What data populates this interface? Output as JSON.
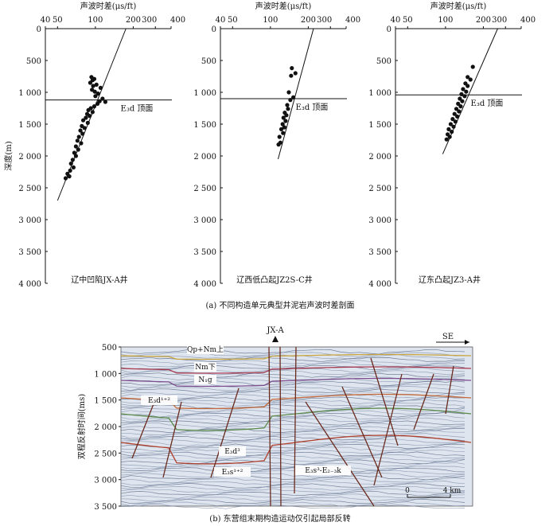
{
  "figure": {
    "caption_a": "(a) 不同构造单元典型井泥岩声波时差剖面",
    "caption_b": "(b) 东营组末期构造运动仅引起局部反转"
  },
  "chart_data": [
    {
      "type": "scatter",
      "title": "辽中凹陷JX-A井",
      "xlabel": "声波时差(μs/ft)",
      "ylabel": "深度(m)",
      "x_scale": "log",
      "xlim": [
        40,
        400
      ],
      "ylim": [
        0,
        4000
      ],
      "x_ticks": [
        "40",
        "50",
        "100",
        "200",
        "300",
        "400"
      ],
      "y_ticks": [
        "0",
        "500",
        "1 000",
        "1 500",
        "2 000",
        "2 500",
        "3 000",
        "3 500",
        "4 000"
      ],
      "boundary": {
        "label": "E₃d 顶面",
        "depth": 1120
      },
      "trend_line": [
        [
          175,
          0
        ],
        [
          50,
          2700
        ]
      ],
      "points": [
        [
          93,
          760
        ],
        [
          98,
          790
        ],
        [
          95,
          810
        ],
        [
          91,
          850
        ],
        [
          102,
          880
        ],
        [
          96,
          900
        ],
        [
          110,
          930
        ],
        [
          94,
          960
        ],
        [
          99,
          990
        ],
        [
          105,
          1020
        ],
        [
          100,
          1060
        ],
        [
          114,
          1100
        ],
        [
          108,
          1140
        ],
        [
          120,
          1150
        ],
        [
          104,
          1180
        ],
        [
          98,
          1220
        ],
        [
          92,
          1250
        ],
        [
          88,
          1280
        ],
        [
          95,
          1310
        ],
        [
          86,
          1340
        ],
        [
          90,
          1370
        ],
        [
          84,
          1400
        ],
        [
          80,
          1440
        ],
        [
          87,
          1480
        ],
        [
          78,
          1530
        ],
        [
          82,
          1560
        ],
        [
          76,
          1600
        ],
        [
          79,
          1650
        ],
        [
          74,
          1700
        ],
        [
          72,
          1760
        ],
        [
          77,
          1800
        ],
        [
          70,
          1850
        ],
        [
          73,
          1900
        ],
        [
          68,
          1950
        ],
        [
          70,
          2000
        ],
        [
          66,
          2060
        ],
        [
          64,
          2120
        ],
        [
          67,
          2180
        ],
        [
          63,
          2230
        ],
        [
          60,
          2280
        ],
        [
          62,
          2320
        ],
        [
          58,
          2350
        ]
      ]
    },
    {
      "type": "scatter",
      "title": "辽西低凸起JZ2S-C井",
      "xlabel": "声波时差(μs/ft)",
      "ylabel": "",
      "x_scale": "log",
      "xlim": [
        40,
        400
      ],
      "ylim": [
        0,
        4000
      ],
      "x_ticks": [
        "40",
        "50",
        "100",
        "200",
        "300",
        "400"
      ],
      "y_ticks": [
        "0",
        "500",
        "1 000",
        "1 500",
        "2 000",
        "2 500",
        "3 000",
        "3 500",
        "4 000"
      ],
      "boundary": {
        "label": "E₃d 顶面",
        "depth": 1100
      },
      "trend_line": [
        [
          220,
          0
        ],
        [
          115,
          2050
        ]
      ],
      "points": [
        [
          148,
          620
        ],
        [
          158,
          700
        ],
        [
          146,
          740
        ],
        [
          140,
          1000
        ],
        [
          152,
          1080
        ],
        [
          144,
          1120
        ],
        [
          136,
          1200
        ],
        [
          138,
          1260
        ],
        [
          130,
          1320
        ],
        [
          134,
          1360
        ],
        [
          127,
          1400
        ],
        [
          132,
          1450
        ],
        [
          125,
          1500
        ],
        [
          129,
          1550
        ],
        [
          122,
          1580
        ],
        [
          126,
          1640
        ],
        [
          118,
          1700
        ],
        [
          120,
          1790
        ],
        [
          116,
          1820
        ]
      ]
    },
    {
      "type": "scatter",
      "title": "辽东凸起JZ3-A井",
      "xlabel": "声波时差(μs/ft)",
      "ylabel": "",
      "x_scale": "log",
      "xlim": [
        40,
        400
      ],
      "ylim": [
        0,
        4000
      ],
      "x_ticks": [
        "40",
        "50",
        "100",
        "200",
        "300",
        "400"
      ],
      "y_ticks": [
        "0",
        "500",
        "1 000",
        "1 500",
        "2 000",
        "2 500",
        "3 000",
        "3 500",
        "4 000"
      ],
      "boundary": {
        "label": "E₃d 顶面",
        "depth": 1040
      },
      "trend_line": [
        [
          260,
          0
        ],
        [
          95,
          1970
        ]
      ],
      "points": [
        [
          165,
          600
        ],
        [
          150,
          760
        ],
        [
          158,
          800
        ],
        [
          144,
          860
        ],
        [
          150,
          900
        ],
        [
          138,
          950
        ],
        [
          146,
          990
        ],
        [
          134,
          1030
        ],
        [
          142,
          1060
        ],
        [
          130,
          1100
        ],
        [
          136,
          1140
        ],
        [
          126,
          1180
        ],
        [
          132,
          1220
        ],
        [
          122,
          1260
        ],
        [
          128,
          1300
        ],
        [
          118,
          1340
        ],
        [
          124,
          1380
        ],
        [
          114,
          1420
        ],
        [
          120,
          1460
        ],
        [
          110,
          1500
        ],
        [
          116,
          1540
        ],
        [
          106,
          1580
        ],
        [
          112,
          1620
        ],
        [
          104,
          1660
        ],
        [
          108,
          1700
        ],
        [
          102,
          1740
        ]
      ]
    },
    {
      "type": "seismic_section",
      "well": "JX-A",
      "direction": "SE",
      "ylabel": "双程反射时间(ms)",
      "ylim": [
        500,
        3500
      ],
      "y_ticks": [
        "500",
        "1 000",
        "1 500",
        "2 000",
        "2 500",
        "3 000",
        "3 500"
      ],
      "scale_bar": {
        "start": "0",
        "end": "4 km"
      },
      "horizon_labels": [
        "Qp+Nm上",
        "Nm下",
        "N₁g",
        "E₃d¹⁺²",
        "E₃d³",
        "E₃s¹⁺²",
        "E₃s³-E₂₋₃k"
      ]
    }
  ]
}
